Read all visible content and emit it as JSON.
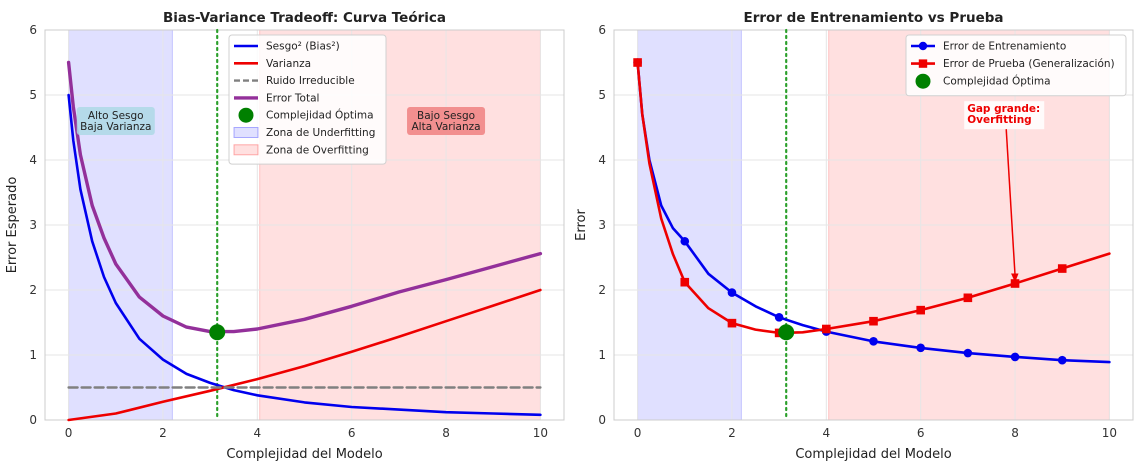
{
  "chart_data": [
    {
      "type": "line",
      "title": "Bias-Variance Tradeoff: Curva Teórica",
      "xlabel": "Complejidad del Modelo",
      "ylabel": "Error Esperado",
      "xlim": [
        -0.5,
        10.5
      ],
      "ylim": [
        0,
        6
      ],
      "xticks": [
        0,
        2,
        4,
        6,
        8,
        10
      ],
      "yticks": [
        0,
        1,
        2,
        3,
        4,
        5,
        6
      ],
      "grid": true,
      "legend_position": "top-center",
      "shaded_regions": [
        {
          "name": "Zona de Underfitting",
          "x_range": [
            0,
            2.2
          ],
          "color": "#0000ff",
          "opacity": 0.12
        },
        {
          "name": "Zona de Overfitting",
          "x_range": [
            4.05,
            10
          ],
          "color": "#ff0000",
          "opacity": 0.12
        }
      ],
      "series": [
        {
          "name": "Sesgo² (Bias²)",
          "color": "#0000ee",
          "width": 2.6,
          "x": [
            0,
            0.1,
            0.25,
            0.5,
            0.75,
            1,
            1.5,
            2,
            2.5,
            3,
            3.5,
            4,
            5,
            6,
            7,
            8,
            9,
            10
          ],
          "y": [
            5.0,
            4.3,
            3.55,
            2.75,
            2.2,
            1.8,
            1.25,
            0.93,
            0.71,
            0.57,
            0.46,
            0.38,
            0.27,
            0.2,
            0.16,
            0.12,
            0.1,
            0.08
          ]
        },
        {
          "name": "Varianza",
          "color": "#ee0000",
          "width": 2.6,
          "x": [
            0,
            1,
            2,
            3,
            4,
            5,
            6,
            7,
            8,
            9,
            10
          ],
          "y": [
            0.0,
            0.1,
            0.28,
            0.45,
            0.63,
            0.83,
            1.05,
            1.28,
            1.52,
            1.76,
            2.0
          ]
        },
        {
          "name": "Ruido Irreducible",
          "color": "#808080",
          "width": 2.4,
          "dashed": true,
          "x": [
            0,
            10
          ],
          "y": [
            0.5,
            0.5
          ]
        },
        {
          "name": "Error Total",
          "color": "#93309a",
          "width": 3.4,
          "x": [
            0,
            0.1,
            0.25,
            0.5,
            0.75,
            1,
            1.5,
            2,
            2.5,
            3,
            3.5,
            4,
            5,
            6,
            7,
            8,
            9,
            10
          ],
          "y": [
            5.5,
            4.82,
            4.08,
            3.3,
            2.8,
            2.4,
            1.89,
            1.6,
            1.43,
            1.36,
            1.36,
            1.4,
            1.55,
            1.75,
            1.97,
            2.16,
            2.36,
            2.56
          ]
        }
      ],
      "markers": [
        {
          "name": "Complejidad Óptima",
          "x": 3.15,
          "y": 1.35,
          "color": "#008000"
        }
      ],
      "vlines": [
        {
          "x": 3.15,
          "color": "#2ca02c",
          "style": "dotted"
        }
      ],
      "annotations": [
        {
          "text_lines": [
            "Alto Sesgo",
            "Baja Varianza"
          ],
          "x": 1.0,
          "y": 4.6,
          "bg": "#add8e6"
        },
        {
          "text_lines": [
            "Bajo Sesgo",
            "Alta Varianza"
          ],
          "x": 8.0,
          "y": 4.6,
          "bg": "#f08080"
        }
      ]
    },
    {
      "type": "line",
      "title": "Error de Entrenamiento vs Prueba",
      "xlabel": "Complejidad del Modelo",
      "ylabel": "Error",
      "xlim": [
        -0.5,
        10.5
      ],
      "ylim": [
        0,
        6
      ],
      "xticks": [
        0,
        2,
        4,
        6,
        8,
        10
      ],
      "yticks": [
        0,
        1,
        2,
        3,
        4,
        5,
        6
      ],
      "grid": true,
      "legend_position": "top-right",
      "shaded_regions": [
        {
          "x_range": [
            0,
            2.2
          ],
          "color": "#0000ff",
          "opacity": 0.12
        },
        {
          "x_range": [
            4.05,
            10
          ],
          "color": "#ff0000",
          "opacity": 0.12
        }
      ],
      "series": [
        {
          "name": "Error de Entrenamiento",
          "color": "#0000ee",
          "width": 2.6,
          "marker": "circle",
          "x": [
            0,
            0.1,
            0.25,
            0.5,
            0.75,
            1,
            1.5,
            2,
            2.5,
            3,
            3.5,
            4,
            5,
            6,
            7,
            8,
            9,
            10
          ],
          "y": [
            5.5,
            4.7,
            4.0,
            3.3,
            2.95,
            2.75,
            2.25,
            1.96,
            1.75,
            1.58,
            1.46,
            1.36,
            1.21,
            1.11,
            1.03,
            0.97,
            0.92,
            0.89
          ],
          "marker_points": {
            "x": [
              0,
              1,
              2,
              3,
              4,
              5,
              6,
              7,
              8,
              9
            ],
            "y": [
              5.5,
              2.75,
              1.96,
              1.58,
              1.36,
              1.21,
              1.11,
              1.03,
              0.97,
              0.92
            ]
          }
        },
        {
          "name": "Error de Prueba (Generalización)",
          "color": "#ee0000",
          "width": 2.6,
          "marker": "square",
          "x": [
            0,
            0.1,
            0.25,
            0.5,
            0.75,
            1,
            1.5,
            2,
            2.5,
            3,
            3.5,
            4,
            5,
            6,
            7,
            8,
            9,
            10
          ],
          "y": [
            5.5,
            4.7,
            3.95,
            3.1,
            2.55,
            2.12,
            1.72,
            1.49,
            1.39,
            1.34,
            1.35,
            1.4,
            1.52,
            1.69,
            1.88,
            2.1,
            2.33,
            2.56
          ],
          "marker_points": {
            "x": [
              0,
              1,
              2,
              3,
              4,
              5,
              6,
              7,
              8,
              9
            ],
            "y": [
              5.5,
              2.12,
              1.49,
              1.34,
              1.4,
              1.52,
              1.69,
              1.88,
              2.1,
              2.33
            ]
          }
        }
      ],
      "markers": [
        {
          "name": "Complejidad Óptima",
          "x": 3.15,
          "y": 1.35,
          "color": "#008000"
        }
      ],
      "vlines": [
        {
          "x": 3.15,
          "color": "#2ca02c",
          "style": "dotted"
        }
      ],
      "arrow_annotation": {
        "text_lines": [
          "Gap grande:",
          "Overfitting"
        ],
        "text_x": 7.05,
        "text_y": 4.72,
        "target_x": 8.0,
        "target_y": 2.1,
        "color": "#ee0000"
      }
    }
  ]
}
